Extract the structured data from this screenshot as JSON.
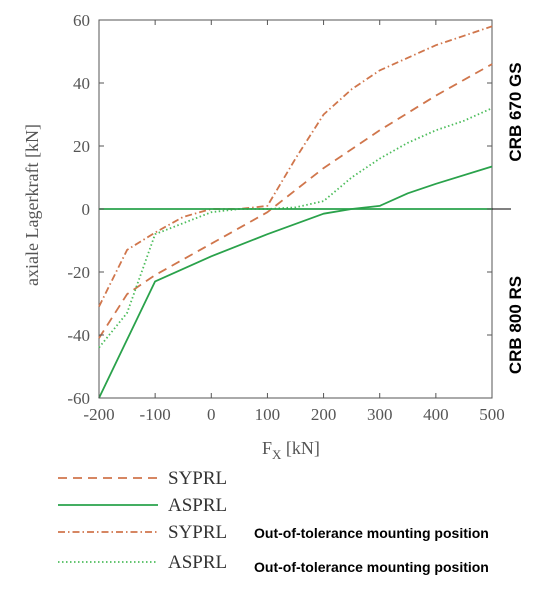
{
  "colors": {
    "orange": "#d0764c",
    "green": "#2aa24b",
    "light_green": "#4dbd5c",
    "axis": "#555555",
    "zero_line": "#000000"
  },
  "chart_data": {
    "type": "line",
    "xlabel_main": "F",
    "xlabel_sub": "X",
    "xlabel_unit": " [kN]",
    "ylabel": "axiale Lagerkraft [kN]",
    "xlim": [
      -200,
      500
    ],
    "ylim": [
      -60,
      60
    ],
    "x_ticks": [
      "-200",
      "-100",
      "0",
      "100",
      "200",
      "300",
      "400",
      "500"
    ],
    "y_ticks": [
      "-60",
      "-40",
      "-20",
      "0",
      "20",
      "40",
      "60"
    ],
    "grid": false,
    "side_labels": {
      "upper": "CRB 670 GS",
      "lower": "CRB 800 RS"
    },
    "series": [
      {
        "name": "SYPRL",
        "style": "dashed",
        "color": "#d0764c",
        "x": [
          -200,
          -150,
          -100,
          0,
          100,
          200,
          300,
          400,
          500
        ],
        "y": [
          -41,
          -27,
          -21,
          -11,
          -1,
          13,
          25,
          36,
          46
        ]
      },
      {
        "name": "ASPRL",
        "style": "solid",
        "color": "#2aa24b",
        "x": [
          -200,
          -100,
          0,
          100,
          200,
          250,
          300,
          350,
          400,
          500
        ],
        "y": [
          -60,
          -23,
          -15,
          -8,
          -1.5,
          0,
          1,
          5,
          8,
          13.5
        ]
      },
      {
        "name": "SYPRL",
        "note": "Out-of-tolerance mounting position",
        "style": "dashdot",
        "color": "#d0764c",
        "x": [
          -200,
          -150,
          -100,
          -50,
          0,
          50,
          100,
          150,
          200,
          250,
          300,
          350,
          400,
          450,
          500
        ],
        "y": [
          -31,
          -13,
          -7.5,
          -2.5,
          0,
          0,
          1,
          16,
          30,
          38,
          44,
          48,
          52,
          55,
          58
        ]
      },
      {
        "name": "ASPRL",
        "note": "Out-of-tolerance mounting position",
        "style": "dotted",
        "color": "#4dbd5c",
        "x": [
          -200,
          -150,
          -100,
          0,
          50,
          100,
          150,
          200,
          250,
          300,
          350,
          400,
          450,
          500
        ],
        "y": [
          -44,
          -33,
          -8,
          -1,
          0,
          0,
          0.5,
          2.5,
          10,
          16,
          21,
          25,
          28,
          32
        ]
      },
      {
        "name": "",
        "style": "solid",
        "color": "#2aa24b",
        "x": [
          -200,
          500
        ],
        "y": [
          0,
          0
        ]
      }
    ]
  }
}
